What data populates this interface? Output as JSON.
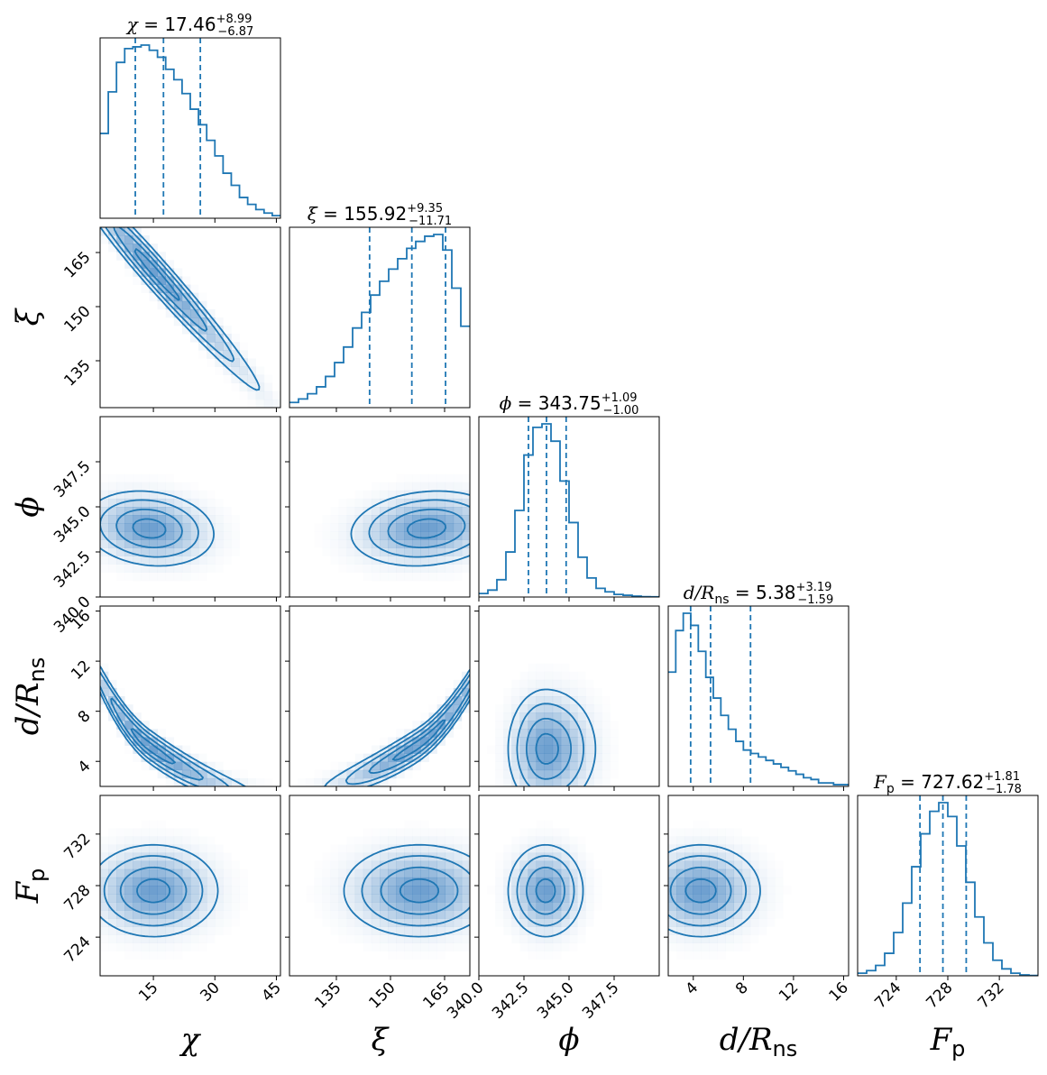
{
  "chart_data": {
    "type": "corner",
    "description_params": [
      "chi",
      "xi",
      "phi",
      "d_over_Rns",
      "F_p"
    ],
    "colors": {
      "line": "#1f77b4",
      "fill": "#3d7fbf"
    },
    "parameters": [
      {
        "key": "chi",
        "label": "χ",
        "label_sub": "",
        "title": {
          "symbol": "χ",
          "symbol_sub": "",
          "value": "17.46",
          "plus": "+8.99",
          "minus": "−6.87"
        },
        "range": [
          2,
          46
        ],
        "ticks": [
          15,
          30,
          45
        ],
        "tick_labels": [
          "15",
          "30",
          "45"
        ],
        "quantiles": [
          10.59,
          17.46,
          26.45
        ],
        "hist": {
          "start": 2,
          "width": 2,
          "counts": [
            0.49,
            0.73,
            0.9,
            0.98,
            0.99,
            1.0,
            0.97,
            0.93,
            0.86,
            0.8,
            0.72,
            0.63,
            0.54,
            0.45,
            0.36,
            0.26,
            0.19,
            0.12,
            0.08,
            0.05,
            0.03,
            0.015
          ]
        }
      },
      {
        "key": "xi",
        "label": "ξ",
        "label_sub": "",
        "title": {
          "symbol": "ξ",
          "symbol_sub": "",
          "value": "155.92",
          "plus": "+9.35",
          "minus": "−11.71"
        },
        "range": [
          122,
          172
        ],
        "ticks": [
          135,
          150,
          165
        ],
        "tick_labels": [
          "135",
          "150",
          "165"
        ],
        "quantiles": [
          144.21,
          155.92,
          165.27
        ],
        "hist": {
          "start": 122,
          "width": 2.5,
          "counts": [
            0.03,
            0.05,
            0.08,
            0.12,
            0.18,
            0.26,
            0.35,
            0.46,
            0.55,
            0.65,
            0.73,
            0.8,
            0.86,
            0.92,
            0.96,
            0.99,
            1.0,
            0.91,
            0.69,
            0.47
          ]
        }
      },
      {
        "key": "phi",
        "label": "ϕ",
        "label_sub": "",
        "title": {
          "symbol": "ϕ",
          "symbol_sub": "",
          "value": "343.75",
          "plus": "+1.09",
          "minus": "−1.00"
        },
        "range": [
          340,
          350
        ],
        "ticks": [
          340.0,
          342.5,
          345.0,
          347.5
        ],
        "tick_labels": [
          "340.0",
          "342.5",
          "345.0",
          "347.5"
        ],
        "quantiles": [
          342.75,
          343.75,
          344.84
        ],
        "hist": {
          "start": 340,
          "width": 0.5,
          "counts": [
            0.02,
            0.04,
            0.1,
            0.26,
            0.5,
            0.82,
            0.98,
            1.0,
            0.9,
            0.67,
            0.43,
            0.23,
            0.11,
            0.05,
            0.03,
            0.015,
            0.01,
            0.005,
            0.002,
            0.001
          ]
        }
      },
      {
        "key": "d_over_Rns",
        "label": "d/R",
        "label_sub": "ns",
        "title": {
          "symbol": "d/R",
          "symbol_sub": "ns",
          "value": "5.38",
          "plus": "+3.19",
          "minus": "−1.59"
        },
        "range": [
          2,
          16.4
        ],
        "ticks": [
          4,
          8,
          12,
          16
        ],
        "tick_labels": [
          "4",
          "8",
          "12",
          "16"
        ],
        "quantiles": [
          3.79,
          5.38,
          8.57
        ],
        "hist": {
          "start": 2,
          "width": 0.6,
          "counts": [
            0.66,
            0.9,
            1.0,
            0.93,
            0.78,
            0.63,
            0.51,
            0.41,
            0.33,
            0.26,
            0.21,
            0.19,
            0.17,
            0.15,
            0.13,
            0.11,
            0.09,
            0.07,
            0.05,
            0.04,
            0.02,
            0.02,
            0.01,
            0.01
          ]
        }
      },
      {
        "key": "F_p",
        "label": "F",
        "label_sub": "p",
        "title": {
          "symbol": "F",
          "symbol_sub": "p",
          "value": "727.62",
          "plus": "+1.81",
          "minus": "−1.78"
        },
        "range": [
          721,
          735
        ],
        "ticks": [
          724,
          728,
          732
        ],
        "tick_labels": [
          "724",
          "728",
          "732"
        ],
        "quantiles": [
          725.84,
          727.62,
          729.43
        ],
        "hist": {
          "start": 721,
          "width": 0.7,
          "counts": [
            0.015,
            0.03,
            0.06,
            0.13,
            0.25,
            0.42,
            0.63,
            0.82,
            0.95,
            1.0,
            0.92,
            0.75,
            0.54,
            0.34,
            0.19,
            0.09,
            0.04,
            0.015,
            0.005,
            0.002
          ]
        }
      }
    ],
    "pairs_2d": [
      {
        "x": "chi",
        "y": "xi",
        "shape": "banana",
        "center": [
          15,
          160
        ],
        "corr": -0.9
      },
      {
        "x": "chi",
        "y": "phi",
        "shape": "gaussian",
        "center": [
          14,
          343.8
        ],
        "corr": -0.15
      },
      {
        "x": "xi",
        "y": "phi",
        "shape": "gaussian",
        "center": [
          160,
          343.8
        ],
        "corr": 0.15
      },
      {
        "x": "chi",
        "y": "d_over_Rns",
        "shape": "banana",
        "center": [
          14,
          5.2
        ],
        "corr": -0.85
      },
      {
        "x": "xi",
        "y": "d_over_Rns",
        "shape": "banana",
        "center": [
          157,
          5.2
        ],
        "corr": 0.85
      },
      {
        "x": "phi",
        "y": "d_over_Rns",
        "shape": "gaussian",
        "center": [
          343.7,
          5.0
        ],
        "corr": 0.0
      },
      {
        "x": "chi",
        "y": "F_p",
        "shape": "gaussian",
        "center": [
          15,
          727.6
        ],
        "corr": 0.0
      },
      {
        "x": "xi",
        "y": "F_p",
        "shape": "gaussian",
        "center": [
          158,
          727.6
        ],
        "corr": 0.0
      },
      {
        "x": "phi",
        "y": "F_p",
        "shape": "gaussian",
        "center": [
          343.7,
          727.6
        ],
        "corr": 0.0
      },
      {
        "x": "d_over_Rns",
        "y": "F_p",
        "shape": "gaussian",
        "center": [
          4.6,
          727.6
        ],
        "corr": 0.0
      }
    ]
  }
}
